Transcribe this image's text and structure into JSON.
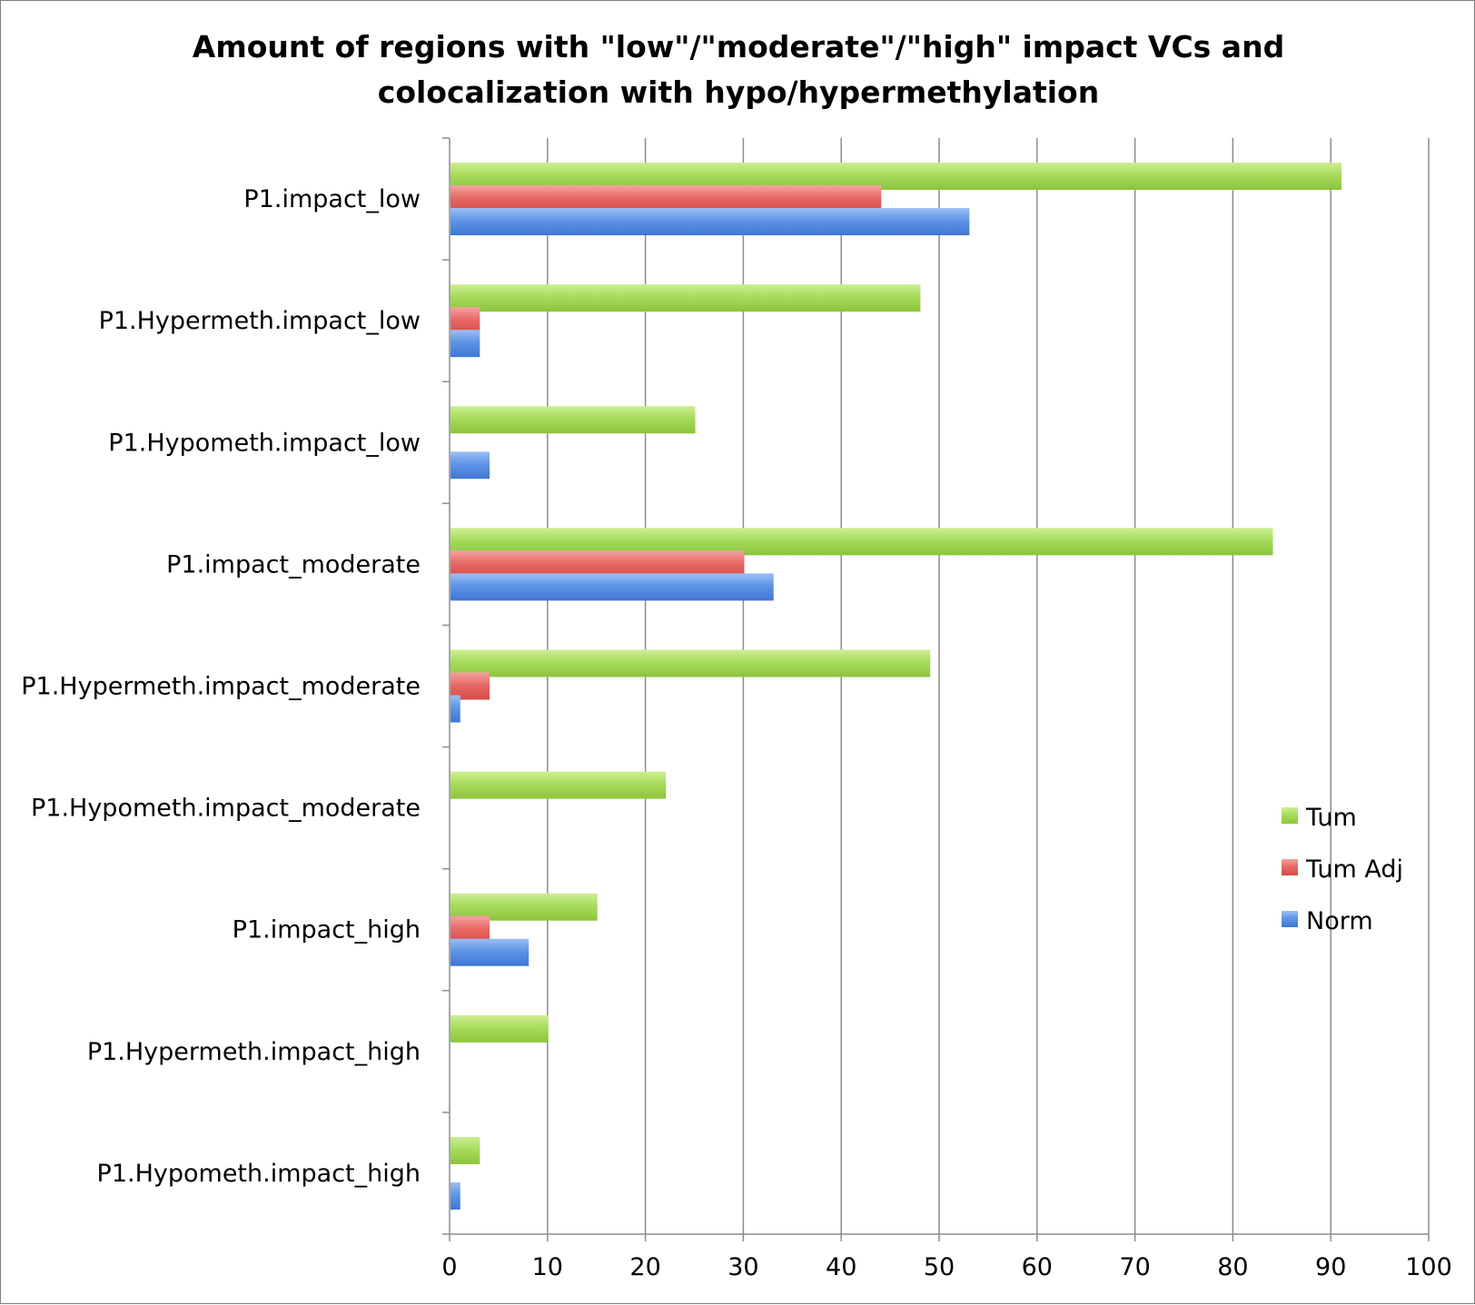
{
  "chart_data": {
    "type": "bar",
    "orientation": "horizontal",
    "title": "Amount of regions with \"low\"/\"moderate\"/\"high\" impact VCs and colocalization with hypo/hypermethylation",
    "title_lines": [
      "Amount of regions with \"low\"/\"moderate\"/\"high\" impact VCs and",
      "colocalization with hypo/hypermethylation"
    ],
    "xlabel": "",
    "ylabel": "",
    "categories": [
      "P1.impact_low",
      "P1.Hypermeth.impact_low",
      "P1.Hypometh.impact_low",
      "P1.impact_moderate",
      "P1.Hypermeth.impact_moderate",
      "P1.Hypometh.impact_moderate",
      "P1.impact_high",
      "P1.Hypermeth.impact_high",
      "P1.Hypometh.impact_high"
    ],
    "series": [
      {
        "name": "Tum",
        "color": "#9bd24a",
        "values": [
          91,
          48,
          25,
          84,
          49,
          22,
          15,
          10,
          3
        ]
      },
      {
        "name": "Tum Adj",
        "color": "#e25a57",
        "values": [
          44,
          3,
          0,
          30,
          4,
          0,
          4,
          0,
          0
        ]
      },
      {
        "name": "Norm",
        "color": "#4a86e0",
        "values": [
          53,
          3,
          4,
          33,
          1,
          0,
          8,
          0,
          1
        ]
      }
    ],
    "xlim": [
      0,
      100
    ],
    "x_ticks": [
      "0",
      "10",
      "20",
      "30",
      "40",
      "50",
      "60",
      "70",
      "80",
      "90",
      "100"
    ],
    "grid": "vertical",
    "legend_position": "right"
  }
}
